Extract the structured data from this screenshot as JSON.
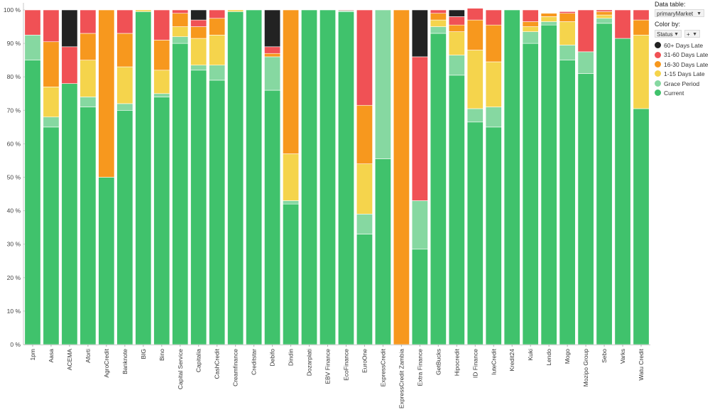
{
  "chart_data": {
    "type": "bar",
    "stacked": true,
    "title": "",
    "xlabel": "",
    "ylabel": "",
    "ylim": [
      0,
      100
    ],
    "y_ticks": [
      "0 %",
      "10 %",
      "20 %",
      "30 %",
      "40 %",
      "50 %",
      "60 %",
      "70 %",
      "80 %",
      "90 %",
      "100 %"
    ],
    "categories": [
      "1pm",
      "Aasa",
      "ACEMA",
      "Aforti",
      "AgroCredit",
      "Banknote",
      "BIG",
      "Bino",
      "Capital Service",
      "Capitalia",
      "CashCredit",
      "Creamfinance",
      "Creditstar",
      "Debifo",
      "Dindin",
      "Dozarplati",
      "EBV Finance",
      "EcoFinance",
      "EuroOne",
      "ExpressCredit",
      "ExpressCredit Zambia",
      "Extra Finance",
      "GetBucks",
      "Hipocredit",
      "ID Finance",
      "IuteCredit",
      "Kredit24",
      "Kuki",
      "Lendo",
      "Mogo",
      "Mozipo Group",
      "Sebo",
      "Varks",
      "Watu Credit"
    ],
    "series": [
      {
        "name": "Current",
        "color": "#40c26c",
        "values": [
          85,
          65,
          78,
          71,
          50,
          70,
          99.5,
          74,
          90,
          82,
          79,
          99.5,
          100,
          76,
          42,
          100,
          100,
          99.5,
          33,
          55.5,
          0,
          28.5,
          93,
          80.5,
          66.5,
          65,
          100,
          90,
          95.5,
          85,
          81,
          96,
          91.5,
          70.5
        ]
      },
      {
        "name": "Grace Period",
        "color": "#86d8a1",
        "values": [
          7.5,
          3,
          0,
          3,
          0,
          2,
          0,
          1,
          2,
          1.5,
          4.5,
          0,
          0,
          10,
          1,
          0,
          0,
          0.3,
          6,
          44.5,
          0,
          14.5,
          2,
          6,
          4,
          6,
          0,
          3.5,
          1,
          4.5,
          6.5,
          1.5,
          0,
          0
        ]
      },
      {
        "name": "1-15 Days Late",
        "color": "#f5d44c",
        "values": [
          0,
          9,
          0,
          11,
          0,
          11,
          0.5,
          7,
          3,
          8,
          9,
          0.5,
          0,
          0,
          14,
          0,
          0,
          0,
          15,
          0,
          0,
          0,
          2,
          7,
          17.5,
          13.5,
          0,
          1.5,
          1.5,
          7,
          0,
          1,
          0,
          22
        ]
      },
      {
        "name": "16-30 Days Late",
        "color": "#f7981e",
        "values": [
          0,
          13.5,
          0,
          8,
          50,
          10,
          0,
          9,
          4,
          3.5,
          5,
          0,
          0,
          1,
          43,
          0,
          0,
          0,
          17.5,
          0,
          100,
          0,
          2,
          2,
          9,
          11,
          0,
          1.5,
          1,
          2.5,
          0,
          1,
          0,
          4.5
        ]
      },
      {
        "name": "31-60 Days Late",
        "color": "#f05155",
        "values": [
          7.5,
          9.5,
          11,
          7,
          0,
          7,
          0,
          9,
          1,
          2,
          2.5,
          0,
          0,
          2,
          0,
          0,
          0,
          0.2,
          28.5,
          0,
          0,
          43,
          1,
          2.5,
          3.5,
          4.5,
          0,
          3.5,
          0,
          0.5,
          12.5,
          0.5,
          8.5,
          3
        ]
      },
      {
        "name": "60+ Days Late",
        "color": "#222222",
        "values": [
          0,
          0,
          11,
          0,
          0,
          0,
          0,
          0,
          0,
          3,
          0,
          0,
          0,
          11,
          0,
          0,
          0,
          0,
          0,
          0,
          0,
          14,
          0,
          2,
          0,
          0,
          0,
          0,
          0,
          0,
          0,
          0,
          0,
          0
        ]
      }
    ]
  },
  "panel": {
    "data_table_label": "Data table:",
    "data_table_value": "primaryMarket",
    "color_by_label": "Color by:",
    "color_by_value": "Status",
    "add_label": "+",
    "legend": [
      {
        "label": "60+ Days Late",
        "color": "#222222"
      },
      {
        "label": "31-60 Days Late",
        "color": "#f05155"
      },
      {
        "label": "16-30 Days Late",
        "color": "#f7981e"
      },
      {
        "label": "1-15 Days Late",
        "color": "#f5d44c"
      },
      {
        "label": "Grace Period",
        "color": "#86d8a1"
      },
      {
        "label": "Current",
        "color": "#40c26c"
      }
    ]
  }
}
